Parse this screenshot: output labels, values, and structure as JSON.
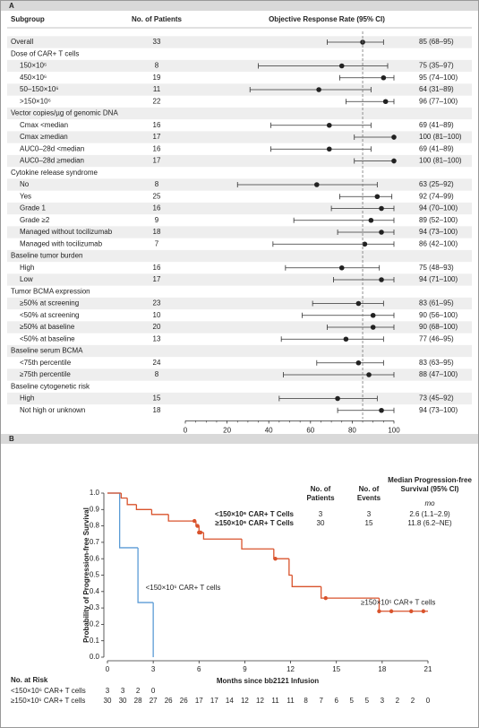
{
  "chart_data": [
    {
      "type": "forest",
      "panel": "A",
      "headers": [
        "Subgroup",
        "No. of Patients",
        "Objective Response Rate (95% CI)"
      ],
      "xlim": [
        0,
        100
      ],
      "xticks": [
        0,
        20,
        40,
        60,
        80,
        100
      ],
      "reference_line": 85,
      "color": "#222222",
      "rows": [
        {
          "label": "Overall",
          "n": 33,
          "value": 85,
          "ci": [
            68,
            95
          ],
          "value_label": "85 (68–95)"
        },
        {
          "label": "Dose of CAR+ T cells"
        },
        {
          "label": "150×10⁶",
          "n": 8,
          "value": 75,
          "ci": [
            35,
            97
          ],
          "value_label": "75 (35–97)"
        },
        {
          "label": "450×10⁶",
          "n": 19,
          "value": 95,
          "ci": [
            74,
            100
          ],
          "value_label": "95 (74–100)"
        },
        {
          "label": "50–150×10⁶",
          "n": 11,
          "value": 64,
          "ci": [
            31,
            89
          ],
          "value_label": "64 (31–89)"
        },
        {
          "label": ">150×10⁶",
          "n": 22,
          "value": 96,
          "ci": [
            77,
            100
          ],
          "value_label": "96 (77–100)"
        },
        {
          "label": "Vector copies/µg of genomic DNA"
        },
        {
          "label": "Cmax <median",
          "n": 16,
          "value": 69,
          "ci": [
            41,
            89
          ],
          "value_label": "69 (41–89)"
        },
        {
          "label": "Cmax ≥median",
          "n": 17,
          "value": 100,
          "ci": [
            81,
            100
          ],
          "value_label": "100 (81–100)"
        },
        {
          "label": "AUC0–28d <median",
          "n": 16,
          "value": 69,
          "ci": [
            41,
            89
          ],
          "value_label": "69 (41–89)"
        },
        {
          "label": "AUC0–28d ≥median",
          "n": 17,
          "value": 100,
          "ci": [
            81,
            100
          ],
          "value_label": "100 (81–100)"
        },
        {
          "label": "Cytokine release syndrome"
        },
        {
          "label": "No",
          "n": 8,
          "value": 63,
          "ci": [
            25,
            92
          ],
          "value_label": "63 (25–92)"
        },
        {
          "label": "Yes",
          "n": 25,
          "value": 92,
          "ci": [
            74,
            99
          ],
          "value_label": "92 (74–99)"
        },
        {
          "label": "Grade 1",
          "n": 16,
          "value": 94,
          "ci": [
            70,
            100
          ],
          "value_label": "94 (70–100)"
        },
        {
          "label": "Grade ≥2",
          "n": 9,
          "value": 89,
          "ci": [
            52,
            100
          ],
          "value_label": "89 (52–100)"
        },
        {
          "label": "Managed without tocilizumab",
          "n": 18,
          "value": 94,
          "ci": [
            73,
            100
          ],
          "value_label": "94 (73–100)"
        },
        {
          "label": "Managed with tocilizumab",
          "n": 7,
          "value": 86,
          "ci": [
            42,
            100
          ],
          "value_label": "86 (42–100)"
        },
        {
          "label": "Baseline tumor burden"
        },
        {
          "label": "High",
          "n": 16,
          "value": 75,
          "ci": [
            48,
            93
          ],
          "value_label": "75 (48–93)"
        },
        {
          "label": "Low",
          "n": 17,
          "value": 94,
          "ci": [
            71,
            100
          ],
          "value_label": "94 (71–100)"
        },
        {
          "label": "Tumor BCMA expression"
        },
        {
          "label": "≥50% at screening",
          "n": 23,
          "value": 83,
          "ci": [
            61,
            95
          ],
          "value_label": "83 (61–95)"
        },
        {
          "label": "<50% at screening",
          "n": 10,
          "value": 90,
          "ci": [
            56,
            100
          ],
          "value_label": "90 (56–100)"
        },
        {
          "label": "≥50% at baseline",
          "n": 20,
          "value": 90,
          "ci": [
            68,
            100
          ],
          "value_label": "90 (68–100)"
        },
        {
          "label": "<50% at baseline",
          "n": 13,
          "value": 77,
          "ci": [
            46,
            95
          ],
          "value_label": "77 (46–95)"
        },
        {
          "label": "Baseline serum BCMA"
        },
        {
          "label": "<75th percentile",
          "n": 24,
          "value": 83,
          "ci": [
            63,
            95
          ],
          "value_label": "83 (63–95)"
        },
        {
          "label": "≥75th percentile",
          "n": 8,
          "value": 88,
          "ci": [
            47,
            100
          ],
          "value_label": "88 (47–100)"
        },
        {
          "label": "Baseline cytogenetic risk"
        },
        {
          "label": "High",
          "n": 15,
          "value": 73,
          "ci": [
            45,
            92
          ],
          "value_label": "73 (45–92)"
        },
        {
          "label": "Not high or unknown",
          "n": 18,
          "value": 94,
          "ci": [
            73,
            100
          ],
          "value_label": "94 (73–100)"
        }
      ]
    },
    {
      "type": "km",
      "panel": "B",
      "xlabel": "Months since bb2121 Infusion",
      "ylabel": "Probability of Progression-free Survival",
      "xlim": [
        0,
        21
      ],
      "xticks": [
        0,
        3,
        6,
        9,
        12,
        15,
        18,
        21
      ],
      "ylim": [
        0,
        1
      ],
      "yticks": [
        {
          "value": 0,
          "label": "0.0"
        },
        {
          "value": 0.1,
          "label": "0.1"
        },
        {
          "value": 0.2,
          "label": "0.2"
        },
        {
          "value": 0.3,
          "label": "0.3"
        },
        {
          "value": 0.4,
          "label": "0.4"
        },
        {
          "value": 0.5,
          "label": "0.5"
        },
        {
          "value": 0.6,
          "label": "0.6"
        },
        {
          "value": 0.7,
          "label": "0.7"
        },
        {
          "value": 0.8,
          "label": "0.8"
        },
        {
          "value": 0.9,
          "label": "0.9"
        },
        {
          "value": 1,
          "label": "1.0"
        }
      ],
      "series": [
        {
          "name": "<150×10⁶ CAR+ T cells",
          "color": "#5b9bd5",
          "x": [
            0,
            0.8,
            2,
            3
          ],
          "values": [
            1,
            0.667,
            0.333,
            0
          ]
        },
        {
          "name": "≥150×10⁶ CAR+ T cells",
          "color": "#d9532c",
          "x": [
            0,
            0.9,
            1.3,
            1.9,
            2.9,
            4,
            5.8,
            6,
            6.3,
            8.8,
            10.9,
            11.9,
            12.1,
            14,
            17.8,
            21
          ],
          "values": [
            1,
            0.97,
            0.93,
            0.9,
            0.87,
            0.83,
            0.8,
            0.76,
            0.72,
            0.66,
            0.6,
            0.5,
            0.43,
            0.36,
            0.28,
            0.28
          ],
          "censored_x": [
            5.7,
            5.9,
            6,
            6.1,
            11,
            14.3,
            17.8,
            18.6,
            19.9,
            20.7
          ],
          "censored_values": [
            0.83,
            0.8,
            0.76,
            0.76,
            0.6,
            0.36,
            0.28,
            0.28,
            0.28,
            0.28
          ]
        }
      ],
      "table": {
        "headers": [
          "No. of Patients",
          "No. of Events",
          "Median Progression-free Survival (95% CI)"
        ],
        "unit": "mo",
        "rows": [
          {
            "label": "<150×10⁶ CAR+ T Cells",
            "patients": 3,
            "events": 3,
            "median": "2.6 (1.1–2.9)"
          },
          {
            "label": "≥150×10⁶ CAR+ T Cells",
            "patients": 30,
            "events": 15,
            "median": "11.8 (6.2–NE)"
          }
        ]
      },
      "at_risk": {
        "title": "No. at Risk",
        "x": [
          0,
          1,
          2,
          3,
          4,
          5,
          6,
          7,
          8,
          9,
          10,
          11,
          12,
          13,
          14,
          15,
          16,
          17,
          18,
          19,
          20,
          21
        ],
        "rows": [
          {
            "label": "<150×10⁶ CAR+ T cells",
            "values": [
              3,
              3,
              2,
              0
            ]
          },
          {
            "label": "≥150×10⁶ CAR+ T cells",
            "values": [
              30,
              30,
              28,
              27,
              26,
              26,
              17,
              17,
              14,
              12,
              12,
              11,
              11,
              8,
              7,
              6,
              5,
              5,
              3,
              2,
              2,
              0
            ]
          }
        ]
      }
    }
  ]
}
